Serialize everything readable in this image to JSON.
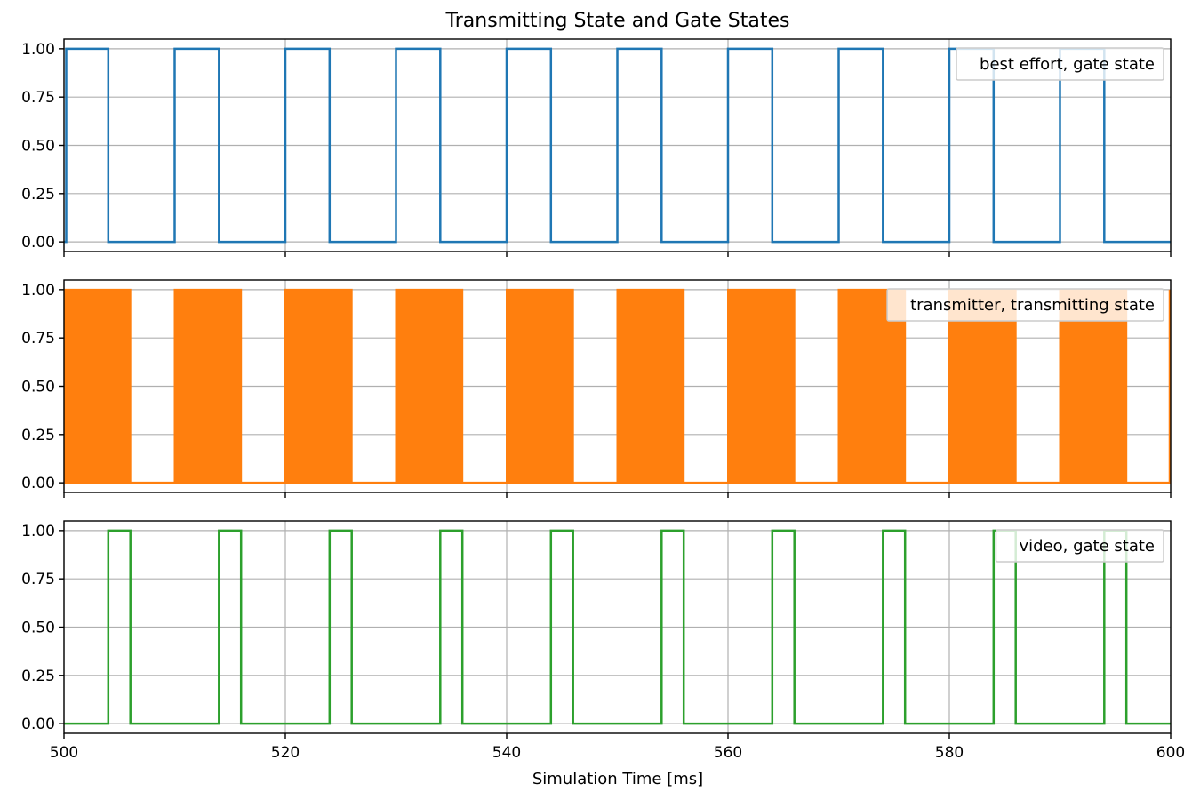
{
  "chart_data": {
    "type": "line",
    "title": "Transmitting State and Gate States",
    "xlabel": "Simulation Time [ms]",
    "xlim": [
      500,
      600
    ],
    "x_ticks": [
      500,
      520,
      540,
      560,
      580,
      600
    ],
    "x_tick_labels": [
      "500",
      "520",
      "540",
      "560",
      "580",
      "600"
    ],
    "ylim": [
      -0.05,
      1.05
    ],
    "y_ticks": [
      0,
      0.25,
      0.5,
      0.75,
      1.0
    ],
    "y_tick_labels": [
      "0.00",
      "0.25",
      "0.50",
      "0.75",
      "1.00"
    ],
    "grid": true,
    "sharex": true,
    "legend_placement": "top-right",
    "panels": [
      {
        "series_name": "best effort, gate state",
        "color": "#1f77b4",
        "style": "step",
        "x": [
          500,
          500.2,
          504,
          510,
          514,
          520,
          524,
          530,
          534,
          540,
          544,
          550,
          554,
          560,
          564,
          570,
          574,
          580,
          584,
          590,
          594,
          600
        ],
        "y": [
          0,
          1,
          0,
          1,
          0,
          1,
          0,
          1,
          0,
          1,
          0,
          1,
          0,
          1,
          0,
          1,
          0,
          1,
          0,
          1,
          0,
          0
        ]
      },
      {
        "series_name": "transmitter, transmitting state",
        "color": "#ff7f0e",
        "style": "filled-bursts",
        "bursts": [
          [
            500,
            506
          ],
          [
            510,
            516
          ],
          [
            520,
            526
          ],
          [
            530,
            536
          ],
          [
            540,
            546
          ],
          [
            550,
            556
          ],
          [
            560,
            566
          ],
          [
            570,
            576
          ],
          [
            580,
            586
          ],
          [
            590,
            596
          ]
        ],
        "baseline": 0,
        "level": 1,
        "final_spike": 600
      },
      {
        "series_name": "video, gate state",
        "color": "#2ca02c",
        "style": "step",
        "x": [
          500,
          504,
          506,
          514,
          516,
          524,
          526,
          534,
          536,
          544,
          546,
          554,
          556,
          564,
          566,
          574,
          576,
          584,
          586,
          594,
          596,
          600
        ],
        "y": [
          0,
          1,
          0,
          1,
          0,
          1,
          0,
          1,
          0,
          1,
          0,
          1,
          0,
          1,
          0,
          1,
          0,
          1,
          0,
          1,
          0,
          0
        ]
      }
    ]
  },
  "colors": {
    "grid": "#b0b0b0",
    "axes": "#000000",
    "legend_border": "#cccccc"
  }
}
